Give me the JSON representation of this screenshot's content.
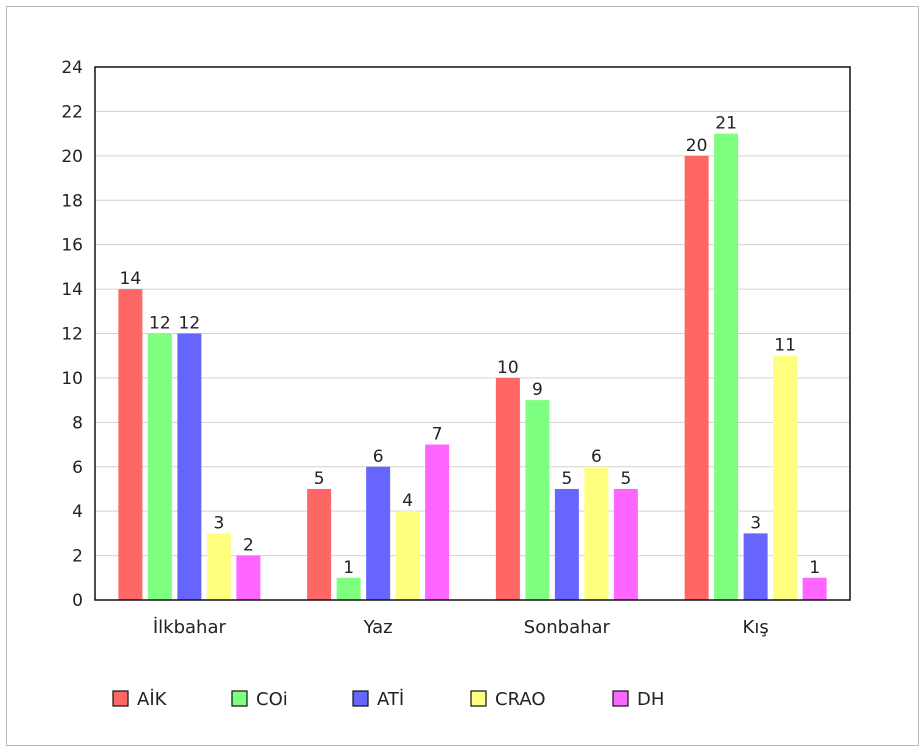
{
  "chart_data": {
    "type": "bar",
    "categories": [
      "İlkbahar",
      "Yaz",
      "Sonbahar",
      "Kış"
    ],
    "series": [
      {
        "name": "AİK",
        "color": "#ff6666",
        "values": [
          14,
          5,
          10,
          20
        ]
      },
      {
        "name": "COi",
        "color": "#7fff7f",
        "values": [
          12,
          1,
          9,
          21
        ]
      },
      {
        "name": "ATİ",
        "color": "#6666ff",
        "values": [
          12,
          6,
          5,
          3
        ]
      },
      {
        "name": "CRAO",
        "color": "#ffff7f",
        "values": [
          3,
          4,
          6,
          11
        ]
      },
      {
        "name": "DH",
        "color": "#ff66ff",
        "values": [
          2,
          7,
          5,
          1
        ]
      }
    ],
    "ylim": [
      0,
      24
    ],
    "yticks": [
      0,
      2,
      4,
      6,
      8,
      10,
      12,
      14,
      16,
      18,
      20,
      22,
      24
    ],
    "grid": true,
    "legend_position": "bottom",
    "show_data_labels": true
  }
}
